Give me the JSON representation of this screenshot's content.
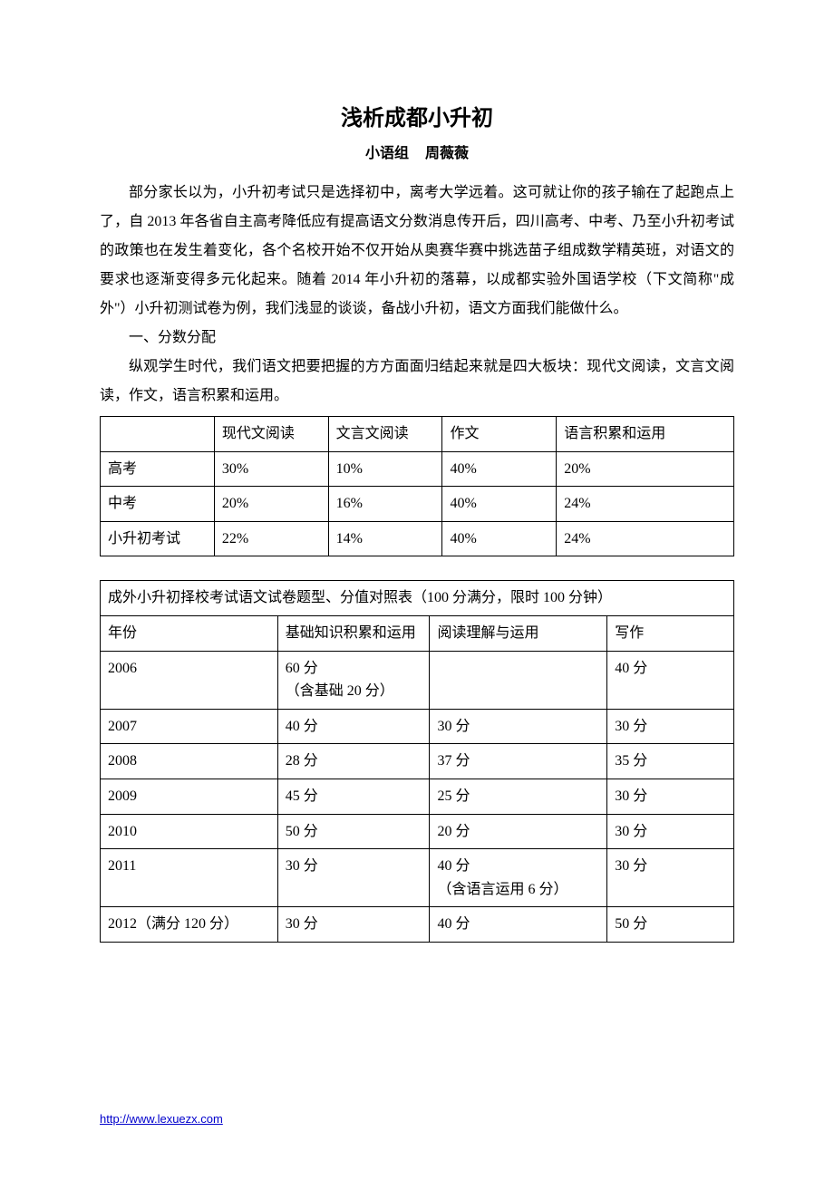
{
  "title": "浅析成都小升初",
  "subtitle_group": "小语组",
  "subtitle_author": "周薇薇",
  "para1": "部分家长以为，小升初考试只是选择初中，离考大学远着。这可就让你的孩子输在了起跑点上了，自 2013 年各省自主高考降低应有提高语文分数消息传开后，四川高考、中考、乃至小升初考试的政策也在发生着变化，各个名校开始不仅开始从奥赛华赛中挑选苗子组成数学精英班，对语文的要求也逐渐变得多元化起来。随着 2014 年小升初的落幕，以成都实验外国语学校（下文简称\"成外\"）小升初测试卷为例，我们浅显的谈谈，备战小升初，语文方面我们能做什么。",
  "section1_heading": "一、分数分配",
  "para2": "纵观学生时代，我们语文把要把握的方方面面归结起来就是四大板块：现代文阅读，文言文阅读，作文，语言积累和运用。",
  "table1": {
    "columns": [
      "",
      "现代文阅读",
      "文言文阅读",
      "作文",
      "语言积累和运用"
    ],
    "rows": [
      [
        "高考",
        "30%",
        "10%",
        "40%",
        "20%"
      ],
      [
        "中考",
        "20%",
        "16%",
        "40%",
        "24%"
      ],
      [
        "小升初考试",
        "22%",
        "14%",
        "40%",
        "24%"
      ]
    ],
    "col_widths": [
      "18%",
      "18%",
      "18%",
      "18%",
      "28%"
    ]
  },
  "table2": {
    "title": "成外小升初择校考试语文试卷题型、分值对照表（100 分满分，限时 100 分钟）",
    "columns": [
      "年份",
      "基础知识积累和运用",
      "阅读理解与运用",
      "写作"
    ],
    "rows": [
      [
        "2006",
        "60 分\n（含基础 20 分）",
        "",
        "40 分"
      ],
      [
        "2007",
        "40 分",
        "30 分",
        "30 分"
      ],
      [
        "2008",
        "28 分",
        "37 分",
        "35 分"
      ],
      [
        "2009",
        "45 分",
        "25 分",
        "30 分"
      ],
      [
        "2010",
        "50 分",
        "20 分",
        "30 分"
      ],
      [
        "2011",
        "30 分",
        "40 分\n（含语言运用 6 分）",
        "30 分"
      ],
      [
        "2012（满分 120 分）",
        "30 分",
        "40 分",
        "50 分"
      ]
    ],
    "col_widths": [
      "28%",
      "24%",
      "28%",
      "20%"
    ]
  },
  "footer_url": "http://www.lexuezx.com"
}
